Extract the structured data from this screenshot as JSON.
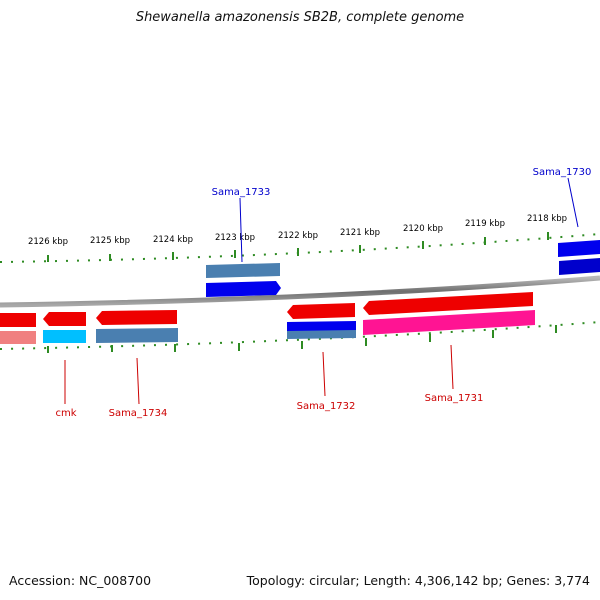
{
  "title": "Shewanella amazonensis SB2B, complete genome",
  "footer": {
    "accession": "Accession: NC_008700",
    "summary": "Topology: circular; Length: 4,306,142 bp; Genes: 3,774"
  },
  "ruler": {
    "tick_labels": [
      "2126 kbp",
      "2125 kbp",
      "2124 kbp",
      "2123 kbp",
      "2122 kbp",
      "2121 kbp",
      "2120 kbp",
      "2119 kbp",
      "2118 kbp"
    ]
  },
  "gene_labels": {
    "sama_1733": "Sama_1733",
    "sama_1730": "Sama_1730",
    "cmk": "cmk",
    "sama_1734": "Sama_1734",
    "sama_1732": "Sama_1732",
    "sama_1731": "Sama_1731"
  },
  "colors": {
    "genome_line": "#808080",
    "tick": "#2e8b22",
    "forward_gene": "#0000ee",
    "forward_gene_light": "#4a7fb0",
    "reverse_gene": "#ee0000",
    "reverse_gene_light": "#f08080",
    "pink_gene": "#ff1493",
    "cyan_gene": "#00bfff",
    "label_blue": "#0000cc",
    "label_red": "#cc0000"
  }
}
